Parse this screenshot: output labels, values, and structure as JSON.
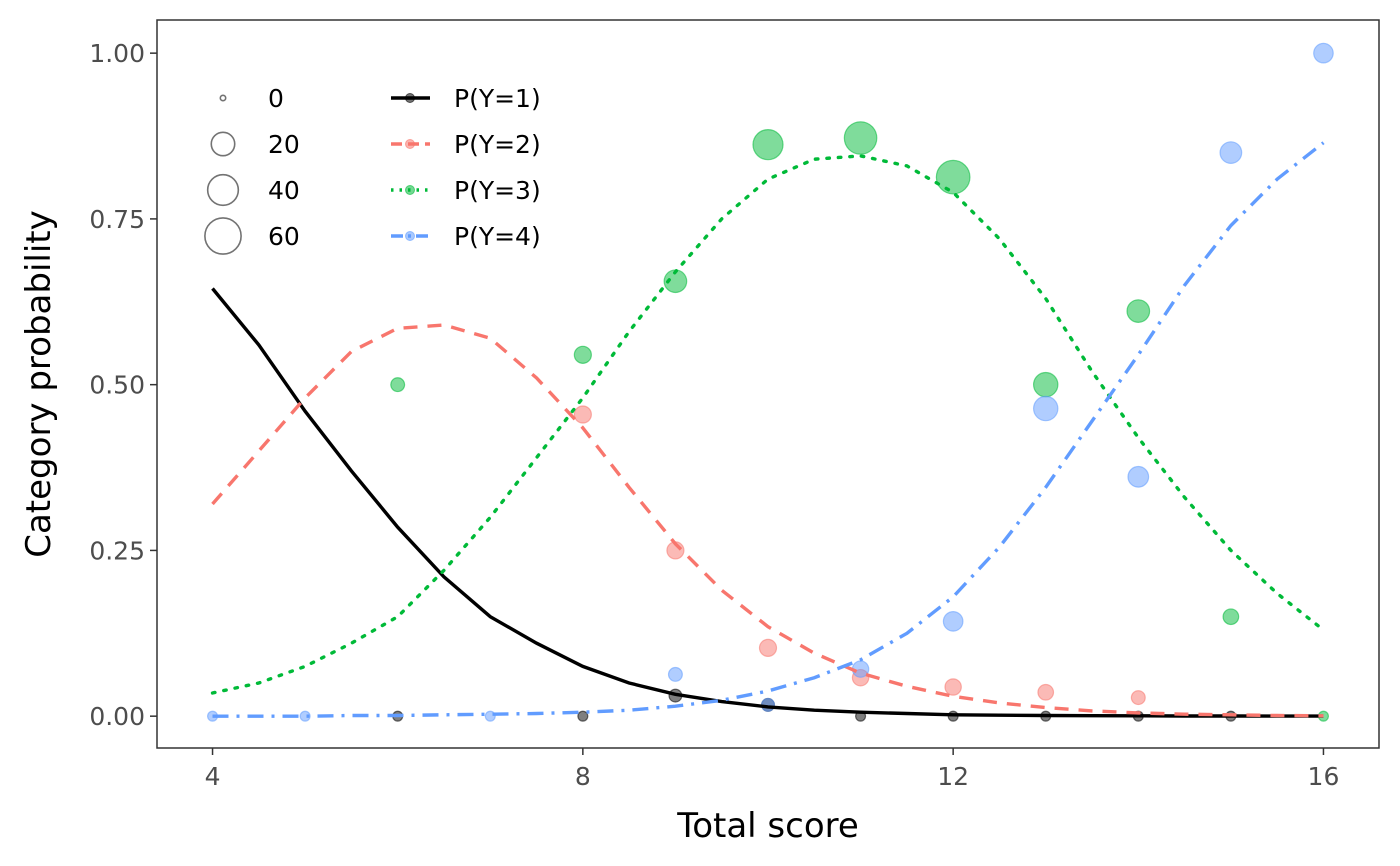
{
  "chart_data": {
    "type": "scatter",
    "title": "",
    "xlabel": "Total score",
    "ylabel": "Category probability",
    "xlim": [
      3.4,
      16.6
    ],
    "ylim": [
      -0.048,
      1.05
    ],
    "x_ticks": [
      4,
      8,
      12,
      16
    ],
    "x_tick_labels": [
      "4",
      "8",
      "12",
      "16"
    ],
    "y_ticks": [
      0,
      0.25,
      0.5,
      0.75,
      1.0
    ],
    "y_tick_labels": [
      "0.00",
      "0.25",
      "0.50",
      "0.75",
      "1.00"
    ],
    "grid": false,
    "size_legend": {
      "placement": "top-left",
      "entries": [
        {
          "label": "0",
          "value": 0
        },
        {
          "label": "20",
          "value": 20
        },
        {
          "label": "40",
          "value": 40
        },
        {
          "label": "60",
          "value": 60
        }
      ]
    },
    "line_legend": {
      "placement": "top-left",
      "entries": [
        {
          "label": "P(Y=1)",
          "series": 0
        },
        {
          "label": "P(Y=2)",
          "series": 1
        },
        {
          "label": "P(Y=3)",
          "series": 2
        },
        {
          "label": "P(Y=4)",
          "series": 3
        }
      ]
    },
    "series": [
      {
        "name": "P(Y=1)",
        "color": "#000000",
        "dash": "solid",
        "curve": {
          "x": [
            4,
            4.5,
            5,
            5.5,
            6,
            6.5,
            7,
            7.5,
            8,
            8.5,
            9,
            9.5,
            10,
            10.5,
            11,
            11.5,
            12,
            12.5,
            13,
            13.5,
            14,
            14.5,
            15,
            15.5,
            16
          ],
          "y": [
            0.645,
            0.56,
            0.46,
            0.37,
            0.285,
            0.21,
            0.15,
            0.11,
            0.075,
            0.05,
            0.033,
            0.022,
            0.014,
            0.009,
            0.006,
            0.004,
            0.002,
            0.0015,
            0.001,
            0.0007,
            0.0005,
            0.0003,
            0.0002,
            0.0001,
            0.0001
          ]
        },
        "points": [
          {
            "x": 9,
            "y": 0.031,
            "n": 3
          },
          {
            "x": 10,
            "y": 0.017,
            "n": 3
          },
          {
            "x": 11,
            "y": 0.0,
            "n": 1
          },
          {
            "x": 12,
            "y": 0.0,
            "n": 1
          },
          {
            "x": 13,
            "y": 0.0,
            "n": 1
          },
          {
            "x": 14,
            "y": 0.0,
            "n": 1
          },
          {
            "x": 15,
            "y": 0.0,
            "n": 1
          },
          {
            "x": 6,
            "y": 0.0,
            "n": 1
          },
          {
            "x": 8,
            "y": 0.0,
            "n": 1
          }
        ]
      },
      {
        "name": "P(Y=2)",
        "color": "#F8766D",
        "dash": "dashed",
        "curve": {
          "x": [
            4,
            4.5,
            5,
            5.5,
            6,
            6.5,
            7,
            7.5,
            8,
            8.5,
            9,
            9.5,
            10,
            10.5,
            11,
            11.5,
            12,
            12.5,
            13,
            13.5,
            14,
            14.5,
            15,
            15.5,
            16
          ],
          "y": [
            0.32,
            0.4,
            0.48,
            0.55,
            0.585,
            0.59,
            0.57,
            0.51,
            0.435,
            0.345,
            0.26,
            0.19,
            0.135,
            0.095,
            0.065,
            0.045,
            0.03,
            0.02,
            0.013,
            0.008,
            0.005,
            0.003,
            0.002,
            0.001,
            0.0005
          ]
        },
        "points": [
          {
            "x": 8,
            "y": 0.455,
            "n": 8
          },
          {
            "x": 9,
            "y": 0.25,
            "n": 8
          },
          {
            "x": 10,
            "y": 0.103,
            "n": 8
          },
          {
            "x": 11,
            "y": 0.058,
            "n": 7
          },
          {
            "x": 12,
            "y": 0.044,
            "n": 7
          },
          {
            "x": 13,
            "y": 0.036,
            "n": 6
          },
          {
            "x": 14,
            "y": 0.028,
            "n": 4
          }
        ]
      },
      {
        "name": "P(Y=3)",
        "color": "#00BA38",
        "dash": "dotted",
        "curve": {
          "x": [
            4,
            4.5,
            5,
            5.5,
            6,
            6.5,
            7,
            7.5,
            8,
            8.5,
            9,
            9.5,
            10,
            10.5,
            11,
            11.5,
            12,
            12.5,
            13,
            13.5,
            14,
            14.5,
            15,
            15.5,
            16
          ],
          "y": [
            0.035,
            0.05,
            0.075,
            0.11,
            0.15,
            0.22,
            0.3,
            0.39,
            0.48,
            0.58,
            0.67,
            0.75,
            0.81,
            0.84,
            0.845,
            0.83,
            0.79,
            0.72,
            0.63,
            0.52,
            0.42,
            0.33,
            0.25,
            0.185,
            0.13
          ]
        },
        "points": [
          {
            "x": 6,
            "y": 0.5,
            "n": 4
          },
          {
            "x": 8,
            "y": 0.545,
            "n": 8
          },
          {
            "x": 9,
            "y": 0.656,
            "n": 18
          },
          {
            "x": 10,
            "y": 0.862,
            "n": 38
          },
          {
            "x": 11,
            "y": 0.872,
            "n": 46
          },
          {
            "x": 12,
            "y": 0.813,
            "n": 50
          },
          {
            "x": 13,
            "y": 0.5,
            "n": 22
          },
          {
            "x": 14,
            "y": 0.611,
            "n": 18
          },
          {
            "x": 15,
            "y": 0.15,
            "n": 6
          },
          {
            "x": 16,
            "y": 0.0,
            "n": 1
          }
        ]
      },
      {
        "name": "P(Y=4)",
        "color": "#619CFF",
        "dash": "dotdash",
        "curve": {
          "x": [
            4,
            4.5,
            5,
            5.5,
            6,
            6.5,
            7,
            7.5,
            8,
            8.5,
            9,
            9.5,
            10,
            10.5,
            11,
            11.5,
            12,
            12.5,
            13,
            13.5,
            14,
            14.5,
            15,
            15.5,
            16
          ],
          "y": [
            0.0,
            0.0,
            0.0,
            0.001,
            0.001,
            0.002,
            0.003,
            0.004,
            0.006,
            0.009,
            0.015,
            0.024,
            0.038,
            0.058,
            0.085,
            0.125,
            0.18,
            0.255,
            0.345,
            0.445,
            0.545,
            0.65,
            0.74,
            0.81,
            0.865
          ]
        },
        "points": [
          {
            "x": 4,
            "y": 0.0,
            "n": 1
          },
          {
            "x": 5,
            "y": 0.0,
            "n": 1
          },
          {
            "x": 7,
            "y": 0.0,
            "n": 1
          },
          {
            "x": 9,
            "y": 0.063,
            "n": 4
          },
          {
            "x": 10,
            "y": 0.017,
            "n": 3
          },
          {
            "x": 11,
            "y": 0.071,
            "n": 7
          },
          {
            "x": 12,
            "y": 0.143,
            "n": 12
          },
          {
            "x": 13,
            "y": 0.464,
            "n": 22
          },
          {
            "x": 14,
            "y": 0.361,
            "n": 14
          },
          {
            "x": 15,
            "y": 0.85,
            "n": 16
          },
          {
            "x": 16,
            "y": 1.0,
            "n": 12
          }
        ]
      }
    ]
  }
}
